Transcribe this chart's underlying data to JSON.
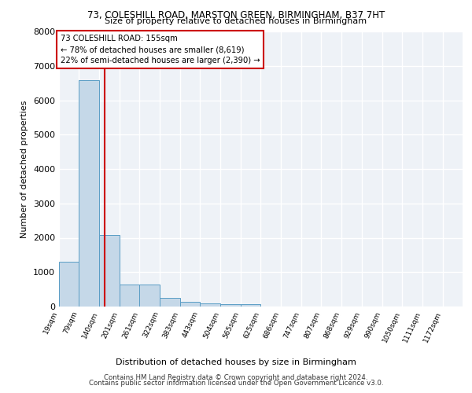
{
  "title1": "73, COLESHILL ROAD, MARSTON GREEN, BIRMINGHAM, B37 7HT",
  "title2": "Size of property relative to detached houses in Birmingham",
  "xlabel": "Distribution of detached houses by size in Birmingham",
  "ylabel": "Number of detached properties",
  "footer1": "Contains HM Land Registry data © Crown copyright and database right 2024.",
  "footer2": "Contains public sector information licensed under the Open Government Licence v3.0.",
  "annotation_title": "73 COLESHILL ROAD: 155sqm",
  "annotation_line1": "← 78% of detached houses are smaller (8,619)",
  "annotation_line2": "22% of semi-detached houses are larger (2,390) →",
  "property_size": 155,
  "bar_edges": [
    19,
    79,
    140,
    201,
    261,
    322,
    383,
    443,
    504,
    565,
    625,
    686,
    747,
    807,
    868,
    929,
    990,
    1050,
    1111,
    1172,
    1232
  ],
  "bar_heights": [
    1300,
    6580,
    2090,
    650,
    640,
    255,
    145,
    100,
    65,
    65,
    0,
    0,
    0,
    0,
    0,
    0,
    0,
    0,
    0,
    0
  ],
  "bar_color": "#c5d8e8",
  "bar_edge_color": "#5a9dc5",
  "line_color": "#cc0000",
  "annotation_box_color": "#cc0000",
  "background_color": "#eef2f7",
  "grid_color": "#ffffff",
  "ylim": [
    0,
    8000
  ],
  "yticks": [
    0,
    1000,
    2000,
    3000,
    4000,
    5000,
    6000,
    7000,
    8000
  ]
}
